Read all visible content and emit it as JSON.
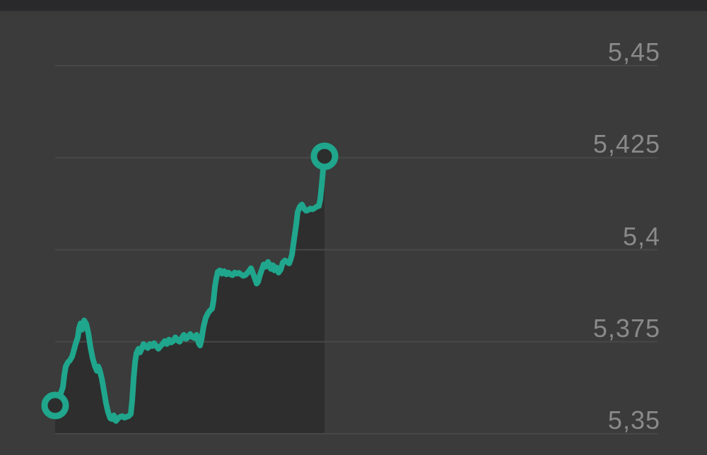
{
  "colors": {
    "background": "#3b3b3b",
    "top_bar": "#29292b",
    "area_fill": "#2e2e2e",
    "line": "#1fa68c",
    "grid_line": "#4a4a4a",
    "tick_label": "#8a8a8a",
    "marker_fill": "#2c2e2d"
  },
  "chart_data": {
    "type": "area",
    "title": "",
    "xlabel": "",
    "ylabel": "",
    "decimal_style": "comma",
    "grid": true,
    "legend": false,
    "ylabel_side": "right",
    "ylim": [
      5.35,
      5.45
    ],
    "y_ticks": [
      {
        "label": "5,45",
        "value": 5.45
      },
      {
        "label": "5,425",
        "value": 5.425
      },
      {
        "label": "5,4",
        "value": 5.4
      },
      {
        "label": "5,375",
        "value": 5.375
      },
      {
        "label": "5,35",
        "value": 5.35
      }
    ],
    "markers": {
      "start": {
        "t": 0.0,
        "price": 5.3577
      },
      "end": {
        "t": 1.0,
        "price": 5.4254
      }
    },
    "series": [
      {
        "name": "price",
        "points": [
          [
            0.0,
            5.3577
          ],
          [
            0.0105,
            5.359
          ],
          [
            0.021,
            5.361
          ],
          [
            0.0289,
            5.3627
          ],
          [
            0.0341,
            5.366
          ],
          [
            0.0394,
            5.3683
          ],
          [
            0.0472,
            5.3694
          ],
          [
            0.0551,
            5.37
          ],
          [
            0.063,
            5.371
          ],
          [
            0.0682,
            5.3723
          ],
          [
            0.0735,
            5.3738
          ],
          [
            0.0787,
            5.375
          ],
          [
            0.084,
            5.3762
          ],
          [
            0.0892,
            5.3788
          ],
          [
            0.0945,
            5.38
          ],
          [
            0.0997,
            5.3783
          ],
          [
            0.1076,
            5.3808
          ],
          [
            0.1155,
            5.3798
          ],
          [
            0.1234,
            5.3773
          ],
          [
            0.1312,
            5.3735
          ],
          [
            0.1391,
            5.3706
          ],
          [
            0.147,
            5.3685
          ],
          [
            0.1549,
            5.3671
          ],
          [
            0.1601,
            5.3683
          ],
          [
            0.1654,
            5.3673
          ],
          [
            0.1732,
            5.365
          ],
          [
            0.1811,
            5.3617
          ],
          [
            0.189,
            5.3583
          ],
          [
            0.1969,
            5.3558
          ],
          [
            0.2047,
            5.3542
          ],
          [
            0.2126,
            5.354
          ],
          [
            0.2178,
            5.355
          ],
          [
            0.2257,
            5.3535
          ],
          [
            0.2336,
            5.3542
          ],
          [
            0.2415,
            5.3546
          ],
          [
            0.2493,
            5.3548
          ],
          [
            0.2572,
            5.3544
          ],
          [
            0.2651,
            5.3546
          ],
          [
            0.273,
            5.3548
          ],
          [
            0.2808,
            5.3554
          ],
          [
            0.2861,
            5.3592
          ],
          [
            0.2913,
            5.365
          ],
          [
            0.2966,
            5.3694
          ],
          [
            0.3018,
            5.3719
          ],
          [
            0.3097,
            5.3731
          ],
          [
            0.315,
            5.3721
          ],
          [
            0.3202,
            5.3729
          ],
          [
            0.3281,
            5.3744
          ],
          [
            0.336,
            5.3738
          ],
          [
            0.3438,
            5.3733
          ],
          [
            0.3517,
            5.3744
          ],
          [
            0.3596,
            5.3738
          ],
          [
            0.3675,
            5.3746
          ],
          [
            0.3753,
            5.3738
          ],
          [
            0.3832,
            5.3731
          ],
          [
            0.3911,
            5.3738
          ],
          [
            0.399,
            5.3744
          ],
          [
            0.4068,
            5.3752
          ],
          [
            0.4147,
            5.3744
          ],
          [
            0.4226,
            5.3756
          ],
          [
            0.4304,
            5.3748
          ],
          [
            0.4383,
            5.3752
          ],
          [
            0.4462,
            5.3762
          ],
          [
            0.4541,
            5.3754
          ],
          [
            0.4619,
            5.375
          ],
          [
            0.4698,
            5.376
          ],
          [
            0.4777,
            5.3769
          ],
          [
            0.4856,
            5.3758
          ],
          [
            0.4934,
            5.3762
          ],
          [
            0.5013,
            5.3771
          ],
          [
            0.5092,
            5.3763
          ],
          [
            0.5171,
            5.376
          ],
          [
            0.5249,
            5.3769
          ],
          [
            0.5328,
            5.3746
          ],
          [
            0.5381,
            5.374
          ],
          [
            0.5433,
            5.3756
          ],
          [
            0.5512,
            5.3792
          ],
          [
            0.5591,
            5.3815
          ],
          [
            0.5669,
            5.3827
          ],
          [
            0.5748,
            5.3835
          ],
          [
            0.5827,
            5.384
          ],
          [
            0.5879,
            5.3862
          ],
          [
            0.5932,
            5.39
          ],
          [
            0.5984,
            5.3923
          ],
          [
            0.6037,
            5.394
          ],
          [
            0.6115,
            5.3944
          ],
          [
            0.6194,
            5.3935
          ],
          [
            0.6273,
            5.3942
          ],
          [
            0.6352,
            5.3933
          ],
          [
            0.643,
            5.3938
          ],
          [
            0.6509,
            5.3933
          ],
          [
            0.6588,
            5.3931
          ],
          [
            0.6667,
            5.3938
          ],
          [
            0.6745,
            5.3935
          ],
          [
            0.6824,
            5.3937
          ],
          [
            0.6903,
            5.3933
          ],
          [
            0.6982,
            5.3929
          ],
          [
            0.706,
            5.3931
          ],
          [
            0.7139,
            5.3937
          ],
          [
            0.7218,
            5.3944
          ],
          [
            0.727,
            5.395
          ],
          [
            0.7349,
            5.3935
          ],
          [
            0.7428,
            5.3919
          ],
          [
            0.748,
            5.3908
          ],
          [
            0.7533,
            5.3913
          ],
          [
            0.7612,
            5.3933
          ],
          [
            0.7664,
            5.3944
          ],
          [
            0.7743,
            5.396
          ],
          [
            0.7822,
            5.3954
          ],
          [
            0.79,
            5.3967
          ],
          [
            0.7953,
            5.396
          ],
          [
            0.8005,
            5.3948
          ],
          [
            0.8084,
            5.3958
          ],
          [
            0.8136,
            5.3944
          ],
          [
            0.8215,
            5.3952
          ],
          [
            0.8294,
            5.3938
          ],
          [
            0.8373,
            5.3946
          ],
          [
            0.8451,
            5.3965
          ],
          [
            0.853,
            5.3971
          ],
          [
            0.8609,
            5.3967
          ],
          [
            0.8688,
            5.3963
          ],
          [
            0.874,
            5.3973
          ],
          [
            0.8793,
            5.3987
          ],
          [
            0.8871,
            5.4029
          ],
          [
            0.895,
            5.4069
          ],
          [
            0.9003,
            5.4102
          ],
          [
            0.9081,
            5.4117
          ],
          [
            0.916,
            5.4123
          ],
          [
            0.9239,
            5.4112
          ],
          [
            0.9318,
            5.4106
          ],
          [
            0.9396,
            5.4108
          ],
          [
            0.9475,
            5.4112
          ],
          [
            0.9554,
            5.411
          ],
          [
            0.9633,
            5.4113
          ],
          [
            0.9711,
            5.4117
          ],
          [
            0.979,
            5.4119
          ],
          [
            0.9843,
            5.4137
          ],
          [
            0.9895,
            5.4175
          ],
          [
            0.9948,
            5.4217
          ],
          [
            1.0,
            5.4254
          ]
        ]
      }
    ]
  }
}
